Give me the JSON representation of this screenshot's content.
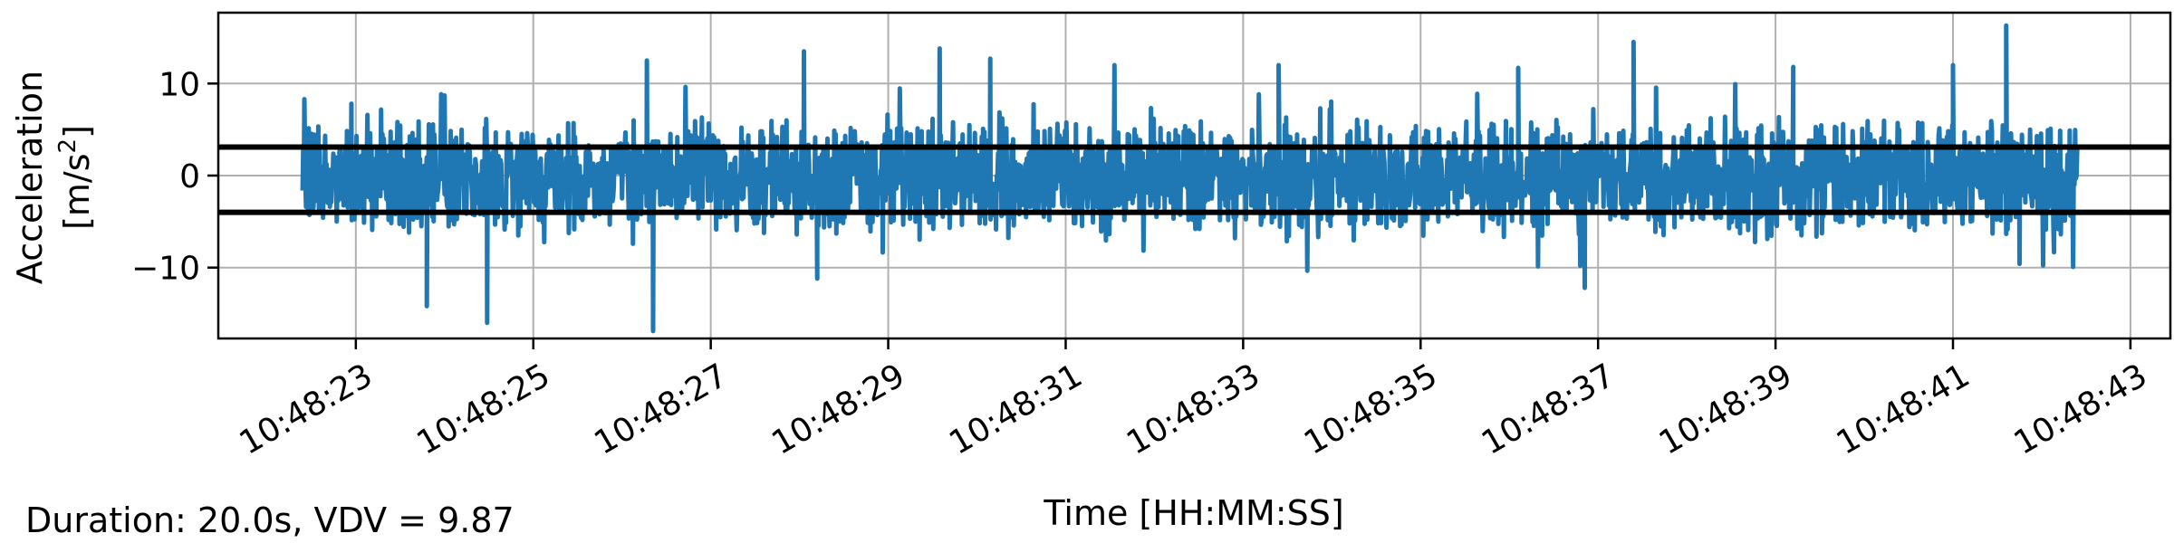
{
  "chart_data": {
    "type": "line",
    "xlabel": "Time [HH:MM:SS]",
    "ylabel_line1": "Acceleration",
    "ylabel_line2_prefix": "[m/s",
    "ylabel_line2_sup": "2",
    "ylabel_line2_suffix": "]",
    "xlim": [
      "10:48:21.45",
      "10:48:43.45"
    ],
    "ylim": [
      -17.7,
      17.7
    ],
    "grid": true,
    "x_ticks": [
      "10:48:23",
      "10:48:25",
      "10:48:27",
      "10:48:29",
      "10:48:31",
      "10:48:33",
      "10:48:35",
      "10:48:37",
      "10:48:39",
      "10:48:41",
      "10:48:43"
    ],
    "y_ticks": [
      10,
      0,
      -10
    ],
    "y_tick_labels": [
      "10",
      "0",
      "−10"
    ],
    "series": [
      {
        "color": "#1f77b4",
        "x_start": "10:48:22.40",
        "x_end": "10:48:42.40",
        "peaks": [
          {
            "t": "10:48:22.42",
            "v": 8.3
          },
          {
            "t": "10:48:22.95",
            "v": 7.8
          },
          {
            "t": "10:48:23.80",
            "v": -14.2
          },
          {
            "t": "10:48:24.00",
            "v": 8.7
          },
          {
            "t": "10:48:24.48",
            "v": -16.0
          },
          {
            "t": "10:48:26.28",
            "v": 12.5
          },
          {
            "t": "10:48:26.35",
            "v": -16.9
          },
          {
            "t": "10:48:28.05",
            "v": 13.5
          },
          {
            "t": "10:48:28.20",
            "v": -11.2
          },
          {
            "t": "10:48:29.58",
            "v": 13.8
          },
          {
            "t": "10:48:30.15",
            "v": 12.7
          },
          {
            "t": "10:48:31.55",
            "v": 12.0
          },
          {
            "t": "10:48:33.40",
            "v": 12.0
          },
          {
            "t": "10:48:36.10",
            "v": 11.7
          },
          {
            "t": "10:48:36.85",
            "v": -12.2
          },
          {
            "t": "10:48:37.40",
            "v": 14.5
          },
          {
            "t": "10:48:39.20",
            "v": 11.8
          },
          {
            "t": "10:48:41.00",
            "v": 12.0
          },
          {
            "t": "10:48:41.60",
            "v": 16.3
          },
          {
            "t": "10:48:41.75",
            "v": -9.6
          }
        ]
      }
    ],
    "hlines": [
      {
        "y": 3.1,
        "color": "#000000"
      },
      {
        "y": -4.0,
        "color": "#000000"
      }
    ]
  },
  "footer": {
    "text": "Duration: 20.0s, VDV = 9.87"
  }
}
